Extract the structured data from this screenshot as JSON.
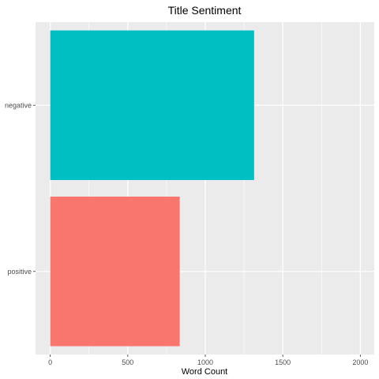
{
  "chart_data": {
    "type": "bar",
    "orientation": "horizontal",
    "title": "Title Sentiment",
    "xlabel": "Word Count",
    "ylabel": "",
    "categories": [
      "negative",
      "positive"
    ],
    "values": [
      1315,
      835
    ],
    "colors": [
      "#00BFC4",
      "#F8766D"
    ],
    "xlim": [
      -95,
      2090
    ],
    "xticks": [
      0,
      500,
      1000,
      1500,
      2000
    ],
    "xtick_labels": [
      "0",
      "500",
      "1000",
      "1500",
      "2000"
    ],
    "panel_background": "#EBEBEB",
    "grid": true,
    "legend": "none"
  }
}
